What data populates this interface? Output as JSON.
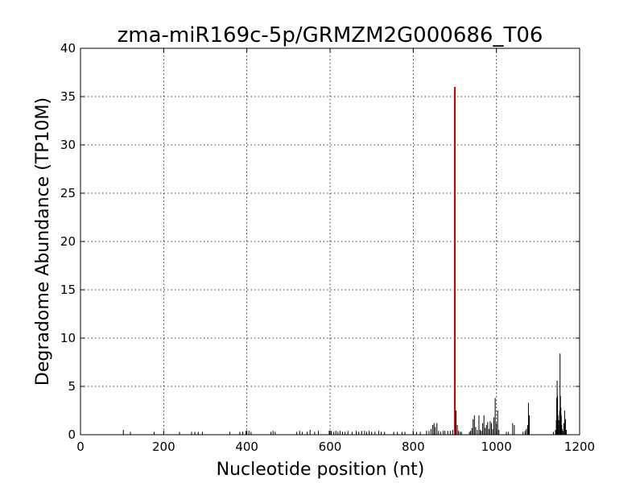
{
  "chart_data": {
    "type": "bar",
    "title": "zma-miR169c-5p/GRMZM2G000686_T06",
    "xlabel": "Nucleotide position (nt)",
    "ylabel": "Degradome Abundance (TP10M)",
    "xlim": [
      0,
      1200
    ],
    "ylim": [
      0,
      40
    ],
    "xticks": [
      0,
      200,
      400,
      600,
      800,
      1000,
      1200
    ],
    "yticks": [
      0,
      5,
      10,
      15,
      20,
      25,
      30,
      35,
      40
    ],
    "grid": true,
    "series": [
      {
        "color": "#000000",
        "points": [
          [
            103,
            0.5
          ],
          [
            120,
            0.3
          ],
          [
            177,
            0.3
          ],
          [
            238,
            0.3
          ],
          [
            267,
            0.3
          ],
          [
            275,
            0.3
          ],
          [
            283,
            0.3
          ],
          [
            293,
            0.3
          ],
          [
            359,
            0.3
          ],
          [
            383,
            0.3
          ],
          [
            390,
            0.3
          ],
          [
            398,
            0.4
          ],
          [
            405,
            0.4
          ],
          [
            410,
            0.3
          ],
          [
            458,
            0.3
          ],
          [
            463,
            0.4
          ],
          [
            468,
            0.3
          ],
          [
            520,
            0.3
          ],
          [
            527,
            0.4
          ],
          [
            533,
            0.3
          ],
          [
            545,
            0.3
          ],
          [
            552,
            0.5
          ],
          [
            563,
            0.3
          ],
          [
            572,
            0.4
          ],
          [
            598,
            0.4
          ],
          [
            603,
            0.4
          ],
          [
            609,
            0.3
          ],
          [
            614,
            0.4
          ],
          [
            619,
            0.3
          ],
          [
            624,
            0.4
          ],
          [
            630,
            0.3
          ],
          [
            636,
            0.3
          ],
          [
            643,
            0.4
          ],
          [
            653,
            0.3
          ],
          [
            663,
            0.4
          ],
          [
            669,
            0.3
          ],
          [
            676,
            0.4
          ],
          [
            683,
            0.4
          ],
          [
            688,
            0.3
          ],
          [
            694,
            0.4
          ],
          [
            700,
            0.3
          ],
          [
            708,
            0.3
          ],
          [
            717,
            0.4
          ],
          [
            723,
            0.3
          ],
          [
            731,
            0.3
          ],
          [
            753,
            0.3
          ],
          [
            762,
            0.3
          ],
          [
            773,
            0.3
          ],
          [
            780,
            0.3
          ],
          [
            800,
            0.3
          ],
          [
            808,
            0.3
          ],
          [
            817,
            0.3
          ],
          [
            832,
            0.4
          ],
          [
            838,
            0.4
          ],
          [
            843,
            0.6
          ],
          [
            847,
            1.0
          ],
          [
            850,
            1.2
          ],
          [
            853,
            0.8
          ],
          [
            857,
            1.2
          ],
          [
            861,
            0.4
          ],
          [
            866,
            0.3
          ],
          [
            872,
            0.4
          ],
          [
            876,
            0.4
          ],
          [
            883,
            0.4
          ],
          [
            889,
            0.4
          ],
          [
            895,
            0.5
          ],
          [
            903,
            2.5
          ],
          [
            906,
            1.0
          ],
          [
            909,
            0.4
          ],
          [
            913,
            0.3
          ],
          [
            916,
            0.3
          ],
          [
            935,
            0.3
          ],
          [
            938,
            0.4
          ],
          [
            941,
            0.7
          ],
          [
            944,
            1.6
          ],
          [
            947,
            2.0
          ],
          [
            950,
            0.8
          ],
          [
            954,
            0.5
          ],
          [
            958,
            2.0
          ],
          [
            961,
            0.5
          ],
          [
            964,
            0.4
          ],
          [
            967,
            1.2
          ],
          [
            970,
            2.0
          ],
          [
            973,
            0.7
          ],
          [
            976,
            1.0
          ],
          [
            979,
            1.3
          ],
          [
            982,
            0.6
          ],
          [
            985,
            1.4
          ],
          [
            988,
            1.2
          ],
          [
            991,
            0.6
          ],
          [
            994,
            1.8
          ],
          [
            997,
            3.8
          ],
          [
            1000,
            1.2
          ],
          [
            1003,
            2.5
          ],
          [
            1006,
            0.5
          ],
          [
            1024,
            0.3
          ],
          [
            1029,
            0.3
          ],
          [
            1039,
            1.2
          ],
          [
            1043,
            1.0
          ],
          [
            1064,
            0.3
          ],
          [
            1069,
            0.4
          ],
          [
            1072,
            0.6
          ],
          [
            1075,
            1.0
          ],
          [
            1077,
            3.3
          ],
          [
            1079,
            2.0
          ],
          [
            1137,
            0.3
          ],
          [
            1142,
            0.5
          ],
          [
            1144,
            1.5
          ],
          [
            1145,
            3.8
          ],
          [
            1146,
            5.6
          ],
          [
            1147,
            4.0
          ],
          [
            1148,
            2.0
          ],
          [
            1149,
            1.0
          ],
          [
            1150,
            1.5
          ],
          [
            1152,
            2.5
          ],
          [
            1153,
            8.4
          ],
          [
            1154,
            4.0
          ],
          [
            1155,
            2.8
          ],
          [
            1156,
            2.0
          ],
          [
            1157,
            1.0
          ],
          [
            1158,
            0.6
          ],
          [
            1160,
            0.4
          ],
          [
            1162,
            1.2
          ],
          [
            1164,
            2.5
          ],
          [
            1166,
            1.6
          ],
          [
            1168,
            0.5
          ]
        ]
      },
      {
        "color": "#d40000",
        "points": [
          [
            900,
            36
          ]
        ]
      }
    ]
  }
}
